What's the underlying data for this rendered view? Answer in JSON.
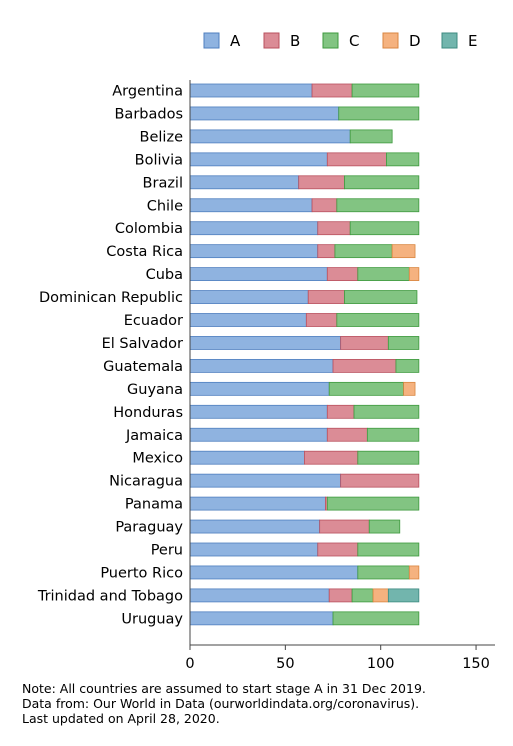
{
  "chart_data": {
    "type": "bar",
    "orientation": "horizontal",
    "stacked": true,
    "categories": [
      "Argentina",
      "Barbados",
      "Belize",
      "Bolivia",
      "Brazil",
      "Chile",
      "Colombia",
      "Costa Rica",
      "Cuba",
      "Dominican Republic",
      "Ecuador",
      "El Salvador",
      "Guatemala",
      "Guyana",
      "Honduras",
      "Jamaica",
      "Mexico",
      "Nicaragua",
      "Panama",
      "Paraguay",
      "Peru",
      "Puerto Rico",
      "Trinidad and Tobago",
      "Uruguay"
    ],
    "series": [
      {
        "name": "A",
        "color": "#8fb3e0",
        "stroke": "#4f7fbf",
        "values": [
          64,
          78,
          84,
          72,
          57,
          64,
          67,
          67,
          72,
          62,
          61,
          79,
          75,
          73,
          72,
          72,
          60,
          79,
          71,
          68,
          67,
          88,
          73,
          75
        ]
      },
      {
        "name": "B",
        "color": "#db8c96",
        "stroke": "#b9505e",
        "values": [
          21,
          0,
          0,
          31,
          24,
          13,
          17,
          9,
          16,
          19,
          16,
          25,
          33,
          0,
          14,
          21,
          28,
          41,
          1,
          26,
          21,
          0,
          12,
          0
        ]
      },
      {
        "name": "C",
        "color": "#82c482",
        "stroke": "#3e9a3e",
        "values": [
          35,
          42,
          22,
          17,
          39,
          43,
          36,
          30,
          27,
          38,
          43,
          16,
          12,
          39,
          34,
          27,
          32,
          0,
          48,
          16,
          32,
          27,
          11,
          45
        ]
      },
      {
        "name": "D",
        "color": "#f5b27f",
        "stroke": "#d98640",
        "values": [
          0,
          0,
          0,
          0,
          0,
          0,
          0,
          12,
          5,
          0,
          0,
          0,
          0,
          6,
          0,
          0,
          0,
          0,
          0,
          0,
          0,
          5,
          8,
          0
        ]
      },
      {
        "name": "E",
        "color": "#72b5ad",
        "stroke": "#3c8a80",
        "values": [
          0,
          0,
          0,
          0,
          0,
          0,
          0,
          0,
          0,
          0,
          0,
          0,
          0,
          0,
          0,
          0,
          0,
          0,
          0,
          0,
          0,
          0,
          16,
          0
        ]
      }
    ],
    "xticks": [
      0,
      50,
      100,
      150
    ],
    "xlim": [
      0,
      155
    ],
    "xlabel": "",
    "ylabel": "",
    "grid": false,
    "legend_position": "top-right"
  },
  "note": {
    "line1": "Note: All countries are assumed to start stage A in 31 Dec 2019.",
    "line2": "Data from: Our World in Data (ourworldindata.org/coronavirus).",
    "line3": "Last updated on April 28, 2020."
  }
}
